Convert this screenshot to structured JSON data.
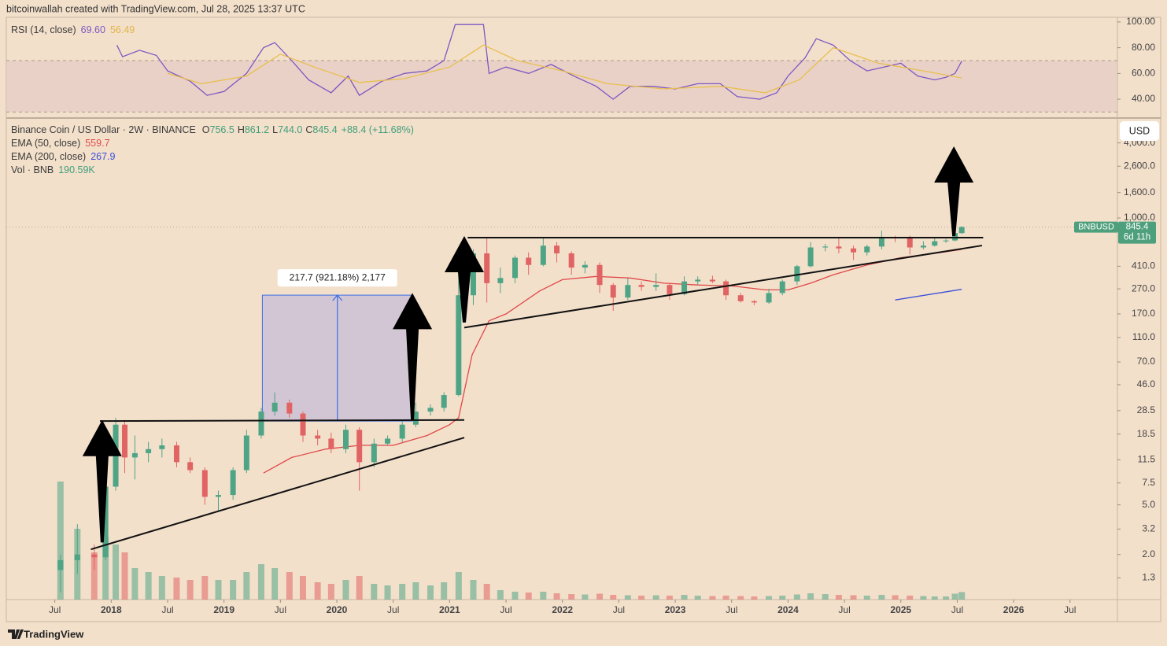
{
  "header": {
    "credit": "bitcoinwallah created with TradingView.com, Jul 28, 2025 13:37 UTC"
  },
  "footer": {
    "brand": "TradingView"
  },
  "chart_data": [
    {
      "type": "line",
      "title": "RSI (14, close)",
      "xlim": [
        2017.07,
        2026.92
      ],
      "ylim": [
        26.6,
        103.6
      ],
      "yticks": [
        {
          "value": 100,
          "label": "100.00"
        },
        {
          "value": 80,
          "label": "80.00"
        },
        {
          "value": 60,
          "label": "60.00"
        },
        {
          "value": 40,
          "label": "40.00"
        }
      ],
      "band": [
        30,
        70
      ],
      "band_color": "#e2c7c5",
      "grid": false,
      "series": [
        {
          "name": "RSI (14, close)",
          "color": "#7e57c2",
          "legend_value": "69.60",
          "x": [
            2018.05,
            2018.1,
            2018.25,
            2018.4,
            2018.5,
            2018.7,
            2018.85,
            2019.0,
            2019.2,
            2019.35,
            2019.45,
            2019.6,
            2019.75,
            2019.95,
            2020.1,
            2020.2,
            2020.4,
            2020.6,
            2020.8,
            2020.95,
            2021.05,
            2021.3,
            2021.35,
            2021.5,
            2021.7,
            2021.9,
            2022.1,
            2022.3,
            2022.45,
            2022.6,
            2022.8,
            2023.0,
            2023.2,
            2023.4,
            2023.55,
            2023.75,
            2023.9,
            2024.0,
            2024.15,
            2024.25,
            2024.4,
            2024.55,
            2024.7,
            2024.85,
            2025.0,
            2025.15,
            2025.3,
            2025.4,
            2025.48,
            2025.54
          ],
          "values": [
            82,
            73,
            78,
            74,
            62,
            54,
            43,
            46,
            60,
            80,
            84,
            70,
            55,
            45,
            58,
            43,
            54,
            60,
            62,
            70,
            98,
            98,
            60,
            65,
            60,
            67,
            58,
            50,
            40,
            50,
            50,
            48,
            52,
            52,
            42,
            40,
            45,
            58,
            72,
            87,
            82,
            70,
            62,
            65,
            68,
            58,
            55,
            57,
            60,
            69.6
          ]
        },
        {
          "color": "#e8bf4e",
          "legend_value": "56.49",
          "x": [
            2018.5,
            2018.8,
            2019.2,
            2019.5,
            2019.8,
            2020.2,
            2020.6,
            2021.0,
            2021.3,
            2021.6,
            2022.0,
            2022.4,
            2022.9,
            2023.4,
            2023.8,
            2024.1,
            2024.4,
            2024.8,
            2025.2,
            2025.54
          ],
          "values": [
            60,
            52,
            58,
            75,
            65,
            53,
            56,
            65,
            82,
            70,
            62,
            52,
            48,
            50,
            45,
            55,
            80,
            68,
            62,
            56.49
          ]
        }
      ]
    },
    {
      "type": "candlestick",
      "title": "Binance Coin / US Dollar · 2W · BINANCE",
      "ohlc": [
        {
          "label": "O",
          "value": "756.5"
        },
        {
          "label": "H",
          "value": "861.2"
        },
        {
          "label": "L",
          "value": "744.0"
        },
        {
          "label": "C",
          "value": "845.4"
        }
      ],
      "change": "+88.4 (+11.68%)",
      "currency": "USD",
      "symbol": "BNBUSD",
      "last_label": "845.4",
      "countdown": "6d 11h",
      "log_scale": true,
      "grid": false,
      "up_color": "#4fa486",
      "down_color": "#e06464",
      "xlim": [
        2017.07,
        2026.92
      ],
      "ylim": [
        0.87,
        6150
      ],
      "xticks": [
        {
          "value": 2017.5,
          "label": "Jul"
        },
        2018,
        {
          "value": 2018.5,
          "label": "Jul"
        },
        2019,
        {
          "value": 2019.5,
          "label": "Jul"
        },
        2020,
        {
          "value": 2020.5,
          "label": "Jul"
        },
        2021,
        {
          "value": 2021.5,
          "label": "Jul"
        },
        2022,
        {
          "value": 2022.5,
          "label": "Jul"
        },
        2023,
        {
          "value": 2023.5,
          "label": "Jul"
        },
        2024,
        {
          "value": 2024.5,
          "label": "Jul"
        },
        2025,
        {
          "value": 2025.5,
          "label": "Jul"
        },
        2026,
        {
          "value": 2026.5,
          "label": "Jul"
        }
      ],
      "yticks": [
        {
          "value": 4000,
          "label": "4,000.0"
        },
        {
          "value": 2600,
          "label": "2,600.0"
        },
        {
          "value": 1600,
          "label": "1,600.0"
        },
        {
          "value": 1000,
          "label": "1,000.0"
        },
        {
          "value": 410,
          "label": "410.0"
        },
        {
          "value": 270,
          "label": "270.0"
        },
        {
          "value": 170,
          "label": "170.0"
        },
        {
          "value": 110,
          "label": "110.0"
        },
        {
          "value": 70,
          "label": "70.0"
        },
        {
          "value": 46,
          "label": "46.0"
        },
        {
          "value": 28.5,
          "label": "28.5"
        },
        {
          "value": 18.5,
          "label": "18.5"
        },
        {
          "value": 11.5,
          "label": "11.5"
        },
        {
          "value": 7.5,
          "label": "7.5"
        },
        {
          "value": 5,
          "label": "5.0"
        },
        {
          "value": 3.2,
          "label": "3.2"
        },
        {
          "value": 2,
          "label": "2.0"
        },
        {
          "value": 1.3,
          "label": "1.3"
        }
      ],
      "x": [
        2017.55,
        2017.7,
        2017.85,
        2017.95,
        2018.04,
        2018.12,
        2018.21,
        2018.33,
        2018.45,
        2018.58,
        2018.7,
        2018.83,
        2018.95,
        2019.08,
        2019.2,
        2019.33,
        2019.45,
        2019.58,
        2019.7,
        2019.83,
        2019.95,
        2020.08,
        2020.2,
        2020.33,
        2020.45,
        2020.58,
        2020.7,
        2020.83,
        2020.95,
        2021.08,
        2021.21,
        2021.33,
        2021.45,
        2021.58,
        2021.7,
        2021.83,
        2021.95,
        2022.08,
        2022.2,
        2022.33,
        2022.45,
        2022.58,
        2022.7,
        2022.83,
        2022.95,
        2023.08,
        2023.2,
        2023.33,
        2023.45,
        2023.58,
        2023.7,
        2023.83,
        2023.95,
        2024.08,
        2024.2,
        2024.33,
        2024.45,
        2024.58,
        2024.7,
        2024.83,
        2024.95,
        2025.08,
        2025.2,
        2025.3,
        2025.4,
        2025.48,
        2025.54
      ],
      "open": [
        1.5,
        1.8,
        2.0,
        1.9,
        7,
        22,
        12,
        13,
        14,
        15,
        11,
        9.5,
        5.8,
        6,
        9.5,
        18,
        28,
        33,
        27,
        18,
        17,
        14,
        20,
        11,
        15.5,
        17,
        22,
        28,
        30,
        38,
        240,
        520,
        300,
        330,
        480,
        420,
        600,
        520,
        400,
        420,
        290,
        230,
        290,
        280,
        290,
        245,
        310,
        320,
        310,
        240,
        215,
        210,
        250,
        310,
        410,
        580,
        590,
        570,
        530,
        590,
        700,
        690,
        580,
        600,
        650,
        660,
        756.5
      ],
      "high": [
        2.0,
        3.5,
        2.4,
        8,
        25,
        24,
        18,
        16,
        17,
        16,
        12,
        10,
        6.5,
        10,
        20,
        30,
        40,
        35,
        28,
        20,
        19,
        22,
        21,
        17,
        18,
        24,
        33,
        32,
        40,
        350,
        560,
        690,
        400,
        500,
        530,
        690,
        640,
        540,
        450,
        440,
        300,
        330,
        310,
        360,
        300,
        340,
        340,
        345,
        320,
        250,
        220,
        270,
        320,
        420,
        640,
        620,
        700,
        600,
        610,
        790,
        720,
        720,
        650,
        690,
        680,
        780,
        861.2
      ],
      "low": [
        1.0,
        1.4,
        1.5,
        1.8,
        6.5,
        9,
        8,
        11,
        12,
        10,
        9,
        5,
        4.5,
        5.5,
        9,
        17,
        26,
        25,
        16,
        15,
        13,
        13,
        6.5,
        10,
        15,
        16,
        21,
        26,
        28,
        37,
        200,
        210,
        250,
        300,
        350,
        410,
        440,
        350,
        360,
        250,
        180,
        220,
        260,
        260,
        220,
        240,
        290,
        300,
        220,
        210,
        200,
        205,
        240,
        290,
        400,
        540,
        520,
        460,
        500,
        560,
        640,
        510,
        560,
        590,
        630,
        650,
        744
      ],
      "close": [
        1.8,
        2.0,
        1.9,
        7,
        22,
        12,
        13,
        14,
        15,
        11,
        9.5,
        5.8,
        6,
        9.5,
        18,
        28,
        33,
        27,
        18,
        17,
        14,
        20,
        11,
        15.5,
        17,
        22,
        28,
        30,
        38,
        240,
        520,
        300,
        330,
        480,
        420,
        600,
        520,
        400,
        420,
        290,
        230,
        290,
        280,
        290,
        245,
        310,
        320,
        310,
        240,
        215,
        210,
        250,
        310,
        410,
        580,
        590,
        570,
        530,
        590,
        700,
        690,
        580,
        600,
        650,
        660,
        757,
        845.4
      ],
      "volume": {
        "name": "Vol · BNB",
        "legend_value": "190.59K",
        "color": "#3f9e7a",
        "values": [
          3000,
          1800,
          1200,
          1600,
          1400,
          1200,
          800,
          700,
          600,
          560,
          500,
          600,
          500,
          500,
          700,
          900,
          800,
          700,
          600,
          440,
          400,
          500,
          600,
          400,
          360,
          400,
          440,
          360,
          440,
          700,
          500,
          400,
          240,
          200,
          180,
          200,
          160,
          140,
          130,
          150,
          120,
          110,
          100,
          110,
          100,
          120,
          100,
          90,
          100,
          90,
          80,
          90,
          100,
          130,
          160,
          140,
          120,
          110,
          100,
          120,
          110,
          100,
          90,
          80,
          80,
          150,
          190.59
        ]
      },
      "series": [
        {
          "name": "EMA (50, close)",
          "color": "#e04848",
          "legend_value": "559.7",
          "x": [
            2019.35,
            2019.6,
            2019.9,
            2020.2,
            2020.5,
            2020.8,
            2021.0,
            2021.08,
            2021.2,
            2021.35,
            2021.5,
            2021.8,
            2022.0,
            2022.3,
            2022.6,
            2022.9,
            2023.2,
            2023.5,
            2023.8,
            2024.0,
            2024.2,
            2024.4,
            2024.7,
            2025.0,
            2025.3,
            2025.54
          ],
          "values": [
            9,
            12,
            14,
            15,
            15,
            18,
            22,
            25,
            80,
            150,
            170,
            260,
            320,
            340,
            330,
            300,
            290,
            285,
            265,
            265,
            300,
            350,
            420,
            480,
            520,
            559.7
          ]
        },
        {
          "name": "EMA (200, close)",
          "color": "#3b4fd8",
          "legend_value": "267.9",
          "x": [
            2024.95,
            2025.54
          ],
          "values": [
            220,
            267.9
          ]
        }
      ],
      "trendlines": [
        [
          2017.82,
          2.2,
          2021.13,
          17.3
        ],
        [
          2017.9,
          23.5,
          2021.13,
          24
        ],
        [
          2021.16,
          695,
          2025.73,
          695
        ],
        [
          2021.13,
          132,
          2025.72,
          601
        ]
      ],
      "arrows": [
        [
          2017.92,
          2.5,
          24
        ],
        [
          2020.67,
          24,
          250
        ],
        [
          2021.13,
          145,
          716
        ],
        [
          2025.47,
          716,
          3750
        ]
      ],
      "measure": {
        "x": [
          2019.34,
          2020.67
        ],
        "y": [
          23.5,
          240.5
        ],
        "label": "217.7 (921.18%) 2,177"
      }
    }
  ]
}
